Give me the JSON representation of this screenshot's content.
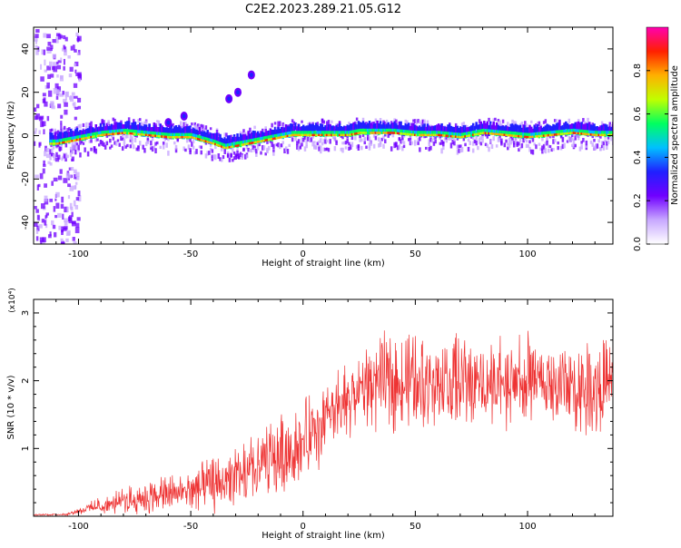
{
  "page_title": "C2E2.2023.289.21.05.G12",
  "chart_data": [
    {
      "type": "heatmap",
      "xlabel": "Height of straight line (km)",
      "ylabel": "Frequency (Hz)",
      "xlim": [
        -120,
        138
      ],
      "ylim": [
        -50,
        50
      ],
      "xticks": [
        -100,
        -50,
        0,
        50,
        100
      ],
      "xtick_labels": [
        "-100",
        "-50",
        "0",
        "50",
        "100"
      ],
      "yticks": [
        -40,
        -20,
        0,
        20,
        40
      ],
      "ytick_labels": [
        "-40",
        "-20",
        "0",
        "20",
        "40"
      ],
      "trace": {
        "x": [
          -110,
          -100,
          -90,
          -80,
          -70,
          -60,
          -50,
          -40,
          -35,
          -30,
          -25,
          -20,
          -15,
          -10,
          -5,
          0,
          5,
          10,
          15,
          20,
          25,
          30,
          40,
          50,
          60,
          70,
          80,
          90,
          100,
          110,
          120,
          130,
          138
        ],
        "y": [
          -4,
          -2,
          0,
          1,
          0,
          -1,
          -1,
          -4,
          -6,
          -5,
          -4,
          -3,
          -2,
          -1,
          0,
          0,
          0,
          0,
          0,
          0,
          1,
          1,
          1,
          0,
          0,
          -1,
          1,
          0,
          -1,
          0,
          1,
          0,
          0
        ]
      },
      "isolated_blobs": [
        {
          "x": -33,
          "y": 17
        },
        {
          "x": -29,
          "y": 20
        },
        {
          "x": -23,
          "y": 28
        },
        {
          "x": -53,
          "y": 9
        },
        {
          "x": -60,
          "y": 6
        }
      ],
      "colorbar": {
        "label": "Normalized spectral amplitude",
        "range": [
          0,
          1
        ],
        "ticks": [
          0.0,
          0.2,
          0.4,
          0.6,
          0.8
        ],
        "tick_labels": [
          "0.0",
          "0.2",
          "0.4",
          "0.6",
          "0.8"
        ],
        "colors": [
          "#ffffff",
          "#c8a8ff",
          "#7000ff",
          "#2020ff",
          "#00c0ff",
          "#00ff60",
          "#c0ff00",
          "#ffb000",
          "#ff2000",
          "#ff00b0"
        ]
      }
    },
    {
      "type": "line",
      "xlabel": "Height of straight line (km)",
      "ylabel": "SNR (10 * v/v)",
      "y_multiplier": "(x10⁴)",
      "xlim": [
        -120,
        138
      ],
      "ylim": [
        0,
        3.2
      ],
      "xticks": [
        -100,
        -50,
        0,
        50,
        100
      ],
      "xtick_labels": [
        "-100",
        "-50",
        "0",
        "50",
        "100"
      ],
      "yticks": [
        1,
        2,
        3
      ],
      "ytick_labels": [
        "1",
        "2",
        "3"
      ],
      "color": "#ee3333",
      "envelope": {
        "x": [
          -120,
          -105,
          -100,
          -95,
          -90,
          -85,
          -80,
          -75,
          -70,
          -65,
          -60,
          -55,
          -50,
          -45,
          -40,
          -35,
          -30,
          -25,
          -20,
          -15,
          -10,
          -5,
          0,
          5,
          10,
          15,
          20,
          25,
          30,
          35,
          40,
          50,
          60,
          70,
          80,
          90,
          100,
          110,
          120,
          130,
          138
        ],
        "y_mean": [
          0.02,
          0.03,
          0.08,
          0.12,
          0.15,
          0.18,
          0.22,
          0.25,
          0.28,
          0.3,
          0.32,
          0.35,
          0.38,
          0.42,
          0.46,
          0.5,
          0.55,
          0.62,
          0.7,
          0.8,
          0.9,
          1.0,
          1.1,
          1.25,
          1.4,
          1.55,
          1.7,
          1.85,
          1.95,
          2.0,
          2.0,
          2.0,
          2.0,
          2.0,
          1.95,
          1.95,
          2.0,
          1.95,
          1.9,
          1.9,
          1.95
        ],
        "y_spread": [
          0.01,
          0.02,
          0.05,
          0.1,
          0.15,
          0.18,
          0.22,
          0.25,
          0.28,
          0.3,
          0.32,
          0.35,
          0.38,
          0.42,
          0.46,
          0.5,
          0.55,
          0.6,
          0.65,
          0.7,
          0.7,
          0.7,
          0.7,
          0.7,
          0.7,
          0.7,
          0.7,
          0.7,
          0.75,
          0.8,
          0.8,
          0.8,
          0.8,
          0.8,
          0.8,
          0.8,
          0.8,
          0.8,
          0.8,
          0.8,
          0.8
        ]
      }
    }
  ]
}
